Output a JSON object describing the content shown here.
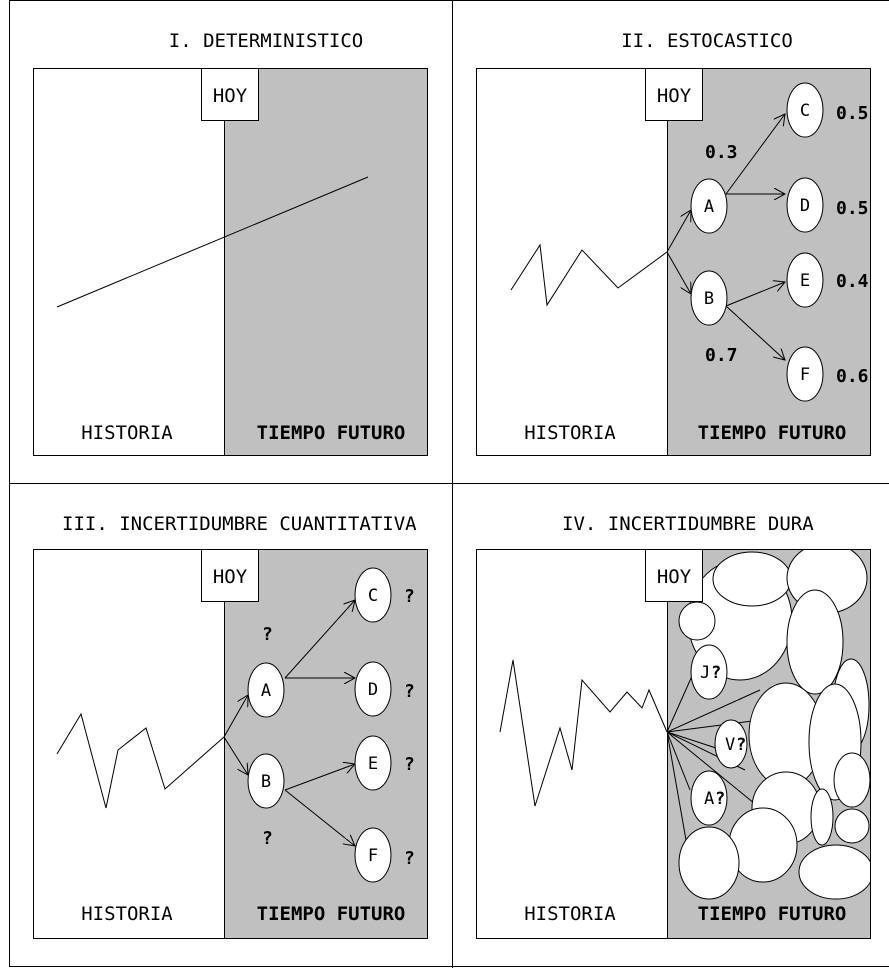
{
  "panels": {
    "p1": {
      "title": "I. DETERMINISTICO",
      "today": "HOY",
      "history": "HISTORIA",
      "future": "TIEMPO FUTURO"
    },
    "p2": {
      "title": "II. ESTOCASTICO",
      "today": "HOY",
      "history": "HISTORIA",
      "future": "TIEMPO FUTURO",
      "nodes": [
        "A",
        "B",
        "C",
        "D",
        "E",
        "F"
      ],
      "branch_a": "0.3",
      "branch_b": "0.7",
      "leaf_c": "0.5",
      "leaf_d": "0.5",
      "leaf_e": "0.4",
      "leaf_f": "0.6"
    },
    "p3": {
      "title": "III. INCERTIDUMBRE CUANTITATIVA",
      "today": "HOY",
      "history": "HISTORIA",
      "future": "TIEMPO FUTURO",
      "nodes": [
        "A",
        "B",
        "C",
        "D",
        "E",
        "F"
      ],
      "branch_a": "?",
      "branch_b": "?",
      "leaf_c": "?",
      "leaf_d": "?",
      "leaf_e": "?",
      "leaf_f": "?"
    },
    "p4": {
      "title": "IV. INCERTIDUMBRE DURA",
      "today": "HOY",
      "history": "HISTORIA",
      "future": "TIEMPO FUTURO",
      "node_j": "J",
      "node_v": "V",
      "node_a": "A",
      "mark": "?"
    }
  },
  "colors": {
    "future_bg": "#c0c0c0",
    "ink": "#000000",
    "paper": "#ffffff"
  }
}
